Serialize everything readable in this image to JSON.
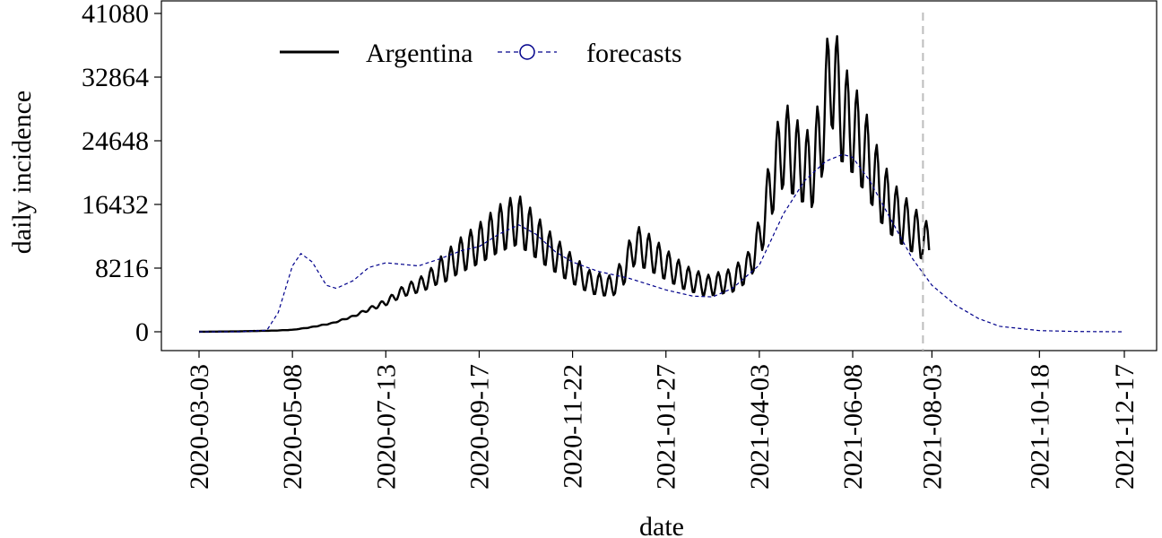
{
  "chart_data": {
    "type": "line",
    "xlabel": "date",
    "ylabel": "daily incidence",
    "x_ticks": [
      "2020-03-03",
      "2020-05-08",
      "2020-07-13",
      "2020-09-17",
      "2020-11-22",
      "2021-01-27",
      "2021-04-03",
      "2021-06-08",
      "2021-08-03",
      "2021-10-18",
      "2021-12-17"
    ],
    "y_ticks": [
      0,
      8216,
      16432,
      24648,
      32864,
      41080
    ],
    "xlim": [
      "2020-03-03",
      "2021-12-17"
    ],
    "ylim": [
      0,
      41080
    ],
    "forecast_start": "2021-08-03",
    "grid": false,
    "legend_position": "top-left",
    "colors": {
      "actual": "#000000",
      "forecast": "#00008b",
      "vline": "#bdbdbd"
    },
    "series": [
      {
        "name": "Argentina",
        "style": "solid",
        "points": [
          [
            "2020-03-03",
            0
          ],
          [
            "2020-04-01",
            60
          ],
          [
            "2020-04-25",
            150
          ],
          [
            "2020-05-08",
            250
          ],
          [
            "2020-05-20",
            550
          ],
          [
            "2020-06-05",
            1100
          ],
          [
            "2020-06-20",
            2000
          ],
          [
            "2020-07-01",
            2900
          ],
          [
            "2020-07-13",
            3800
          ],
          [
            "2020-07-25",
            5200
          ],
          [
            "2020-08-08",
            6200
          ],
          [
            "2020-08-20",
            7700
          ],
          [
            "2020-09-02",
            9600
          ],
          [
            "2020-09-17",
            11300
          ],
          [
            "2020-10-01",
            13200
          ],
          [
            "2020-10-14",
            14400
          ],
          [
            "2020-10-25",
            12600
          ],
          [
            "2020-11-05",
            10600
          ],
          [
            "2020-11-22",
            8000
          ],
          [
            "2020-12-05",
            6300
          ],
          [
            "2020-12-20",
            5800
          ],
          [
            "2020-12-28",
            7800
          ],
          [
            "2021-01-05",
            11200
          ],
          [
            "2021-01-15",
            10200
          ],
          [
            "2021-01-27",
            8600
          ],
          [
            "2021-02-10",
            6900
          ],
          [
            "2021-02-25",
            5900
          ],
          [
            "2021-03-15",
            6600
          ],
          [
            "2021-03-26",
            8300
          ],
          [
            "2021-04-03",
            11800
          ],
          [
            "2021-04-12",
            19500
          ],
          [
            "2021-04-20",
            24200
          ],
          [
            "2021-05-01",
            21800
          ],
          [
            "2021-05-10",
            20600
          ],
          [
            "2021-05-17",
            25600
          ],
          [
            "2021-05-24",
            34200
          ],
          [
            "2021-05-31",
            28200
          ],
          [
            "2021-06-08",
            26200
          ],
          [
            "2021-06-18",
            22600
          ],
          [
            "2021-06-28",
            18100
          ],
          [
            "2021-07-08",
            15300
          ],
          [
            "2021-07-20",
            13200
          ],
          [
            "2021-08-01",
            11200
          ]
        ]
      },
      {
        "name": "forecasts",
        "style": "dashed",
        "points": [
          [
            "2020-03-03",
            0
          ],
          [
            "2020-04-01",
            0
          ],
          [
            "2020-04-20",
            200
          ],
          [
            "2020-04-28",
            2500
          ],
          [
            "2020-05-08",
            8500
          ],
          [
            "2020-05-14",
            10100
          ],
          [
            "2020-05-22",
            9000
          ],
          [
            "2020-06-01",
            6000
          ],
          [
            "2020-06-08",
            5600
          ],
          [
            "2020-06-20",
            6600
          ],
          [
            "2020-07-01",
            8300
          ],
          [
            "2020-07-13",
            8900
          ],
          [
            "2020-07-25",
            8700
          ],
          [
            "2020-08-05",
            8500
          ],
          [
            "2020-08-20",
            9400
          ],
          [
            "2020-09-05",
            10500
          ],
          [
            "2020-09-17",
            11000
          ],
          [
            "2020-10-01",
            12600
          ],
          [
            "2020-10-15",
            13800
          ],
          [
            "2020-10-27",
            12600
          ],
          [
            "2020-11-10",
            10300
          ],
          [
            "2020-11-22",
            9000
          ],
          [
            "2020-12-10",
            7800
          ],
          [
            "2021-01-01",
            6900
          ],
          [
            "2021-01-27",
            5400
          ],
          [
            "2021-02-15",
            4600
          ],
          [
            "2021-03-01",
            4500
          ],
          [
            "2021-03-15",
            5600
          ],
          [
            "2021-04-03",
            8600
          ],
          [
            "2021-04-20",
            15200
          ],
          [
            "2021-05-05",
            19500
          ],
          [
            "2021-05-20",
            22000
          ],
          [
            "2021-06-01",
            22900
          ],
          [
            "2021-06-08",
            22500
          ],
          [
            "2021-06-20",
            19500
          ],
          [
            "2021-07-05",
            14500
          ],
          [
            "2021-07-20",
            9500
          ],
          [
            "2021-08-03",
            6000
          ],
          [
            "2021-08-20",
            3400
          ],
          [
            "2021-09-05",
            1700
          ],
          [
            "2021-09-20",
            700
          ],
          [
            "2021-10-18",
            150
          ],
          [
            "2021-11-15",
            30
          ],
          [
            "2021-12-17",
            0
          ]
        ]
      }
    ]
  }
}
